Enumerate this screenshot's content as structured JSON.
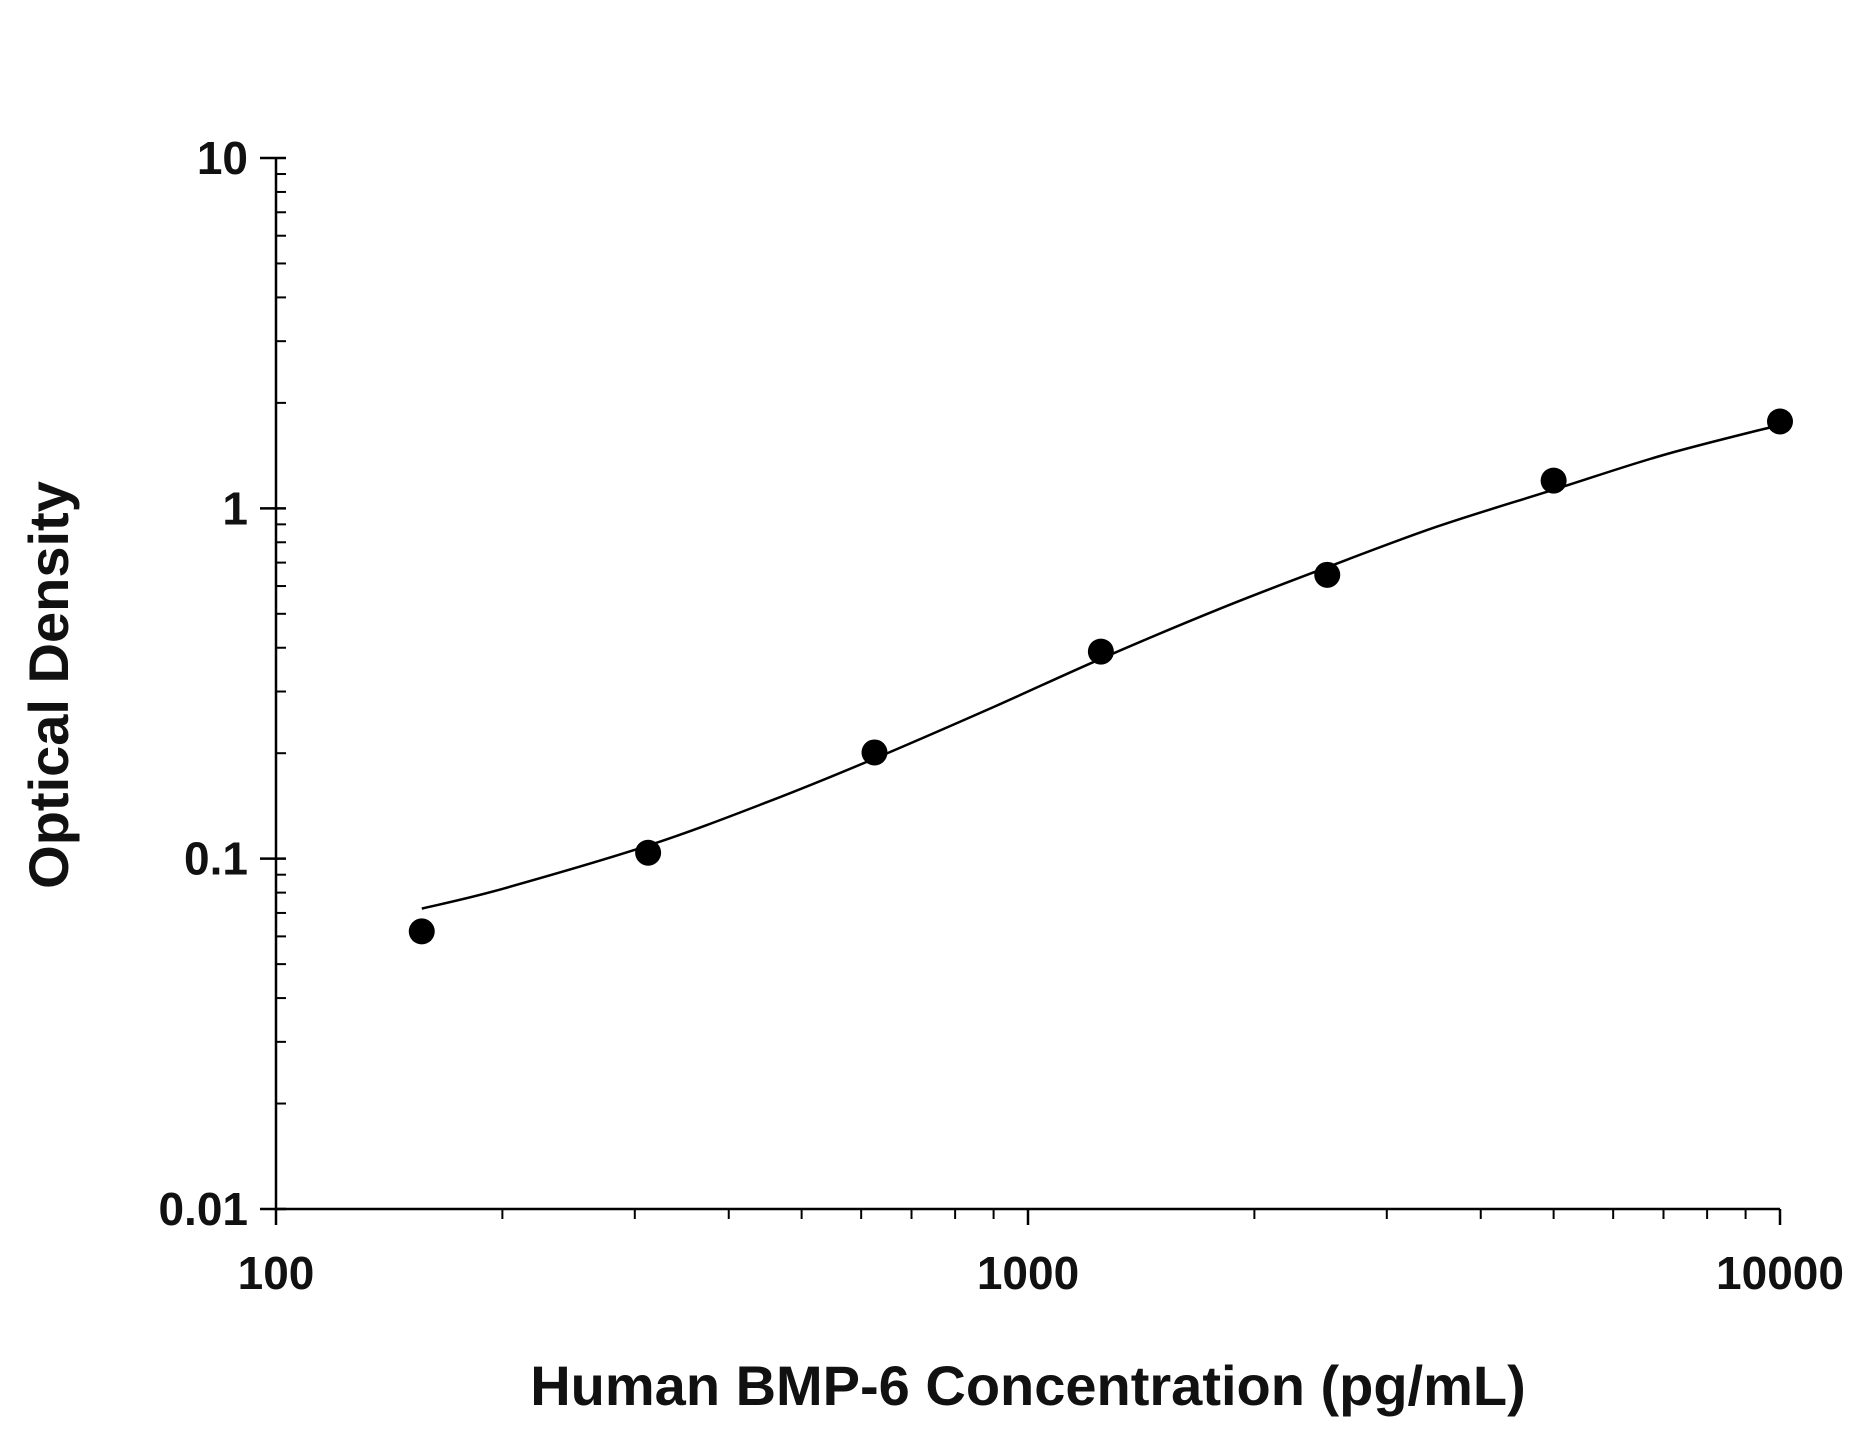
{
  "chart_data": {
    "type": "scatter",
    "title": "",
    "xlabel": "Human BMP-6 Concentration (pg/mL)",
    "ylabel": "Optical Density",
    "x_scale": "log",
    "y_scale": "log",
    "xlim": [
      100,
      10000
    ],
    "ylim": [
      0.01,
      10
    ],
    "x_tick_labels": [
      "100",
      "1000",
      "10000"
    ],
    "y_tick_labels": [
      "0.01",
      "0.1",
      "1",
      "10"
    ],
    "grid": false,
    "legend": "none",
    "series": [
      {
        "marker": "filled-circle",
        "color": "#000000",
        "x": [
          156.25,
          312.5,
          625,
          1250,
          2500,
          5000,
          10000
        ],
        "y": [
          0.062,
          0.104,
          0.201,
          0.39,
          0.646,
          1.2,
          1.77
        ]
      }
    ],
    "fit_curve": {
      "kind": "smooth fitted curve",
      "color": "#000000",
      "x": [
        156.25,
        200,
        312.5,
        450,
        625,
        900,
        1250,
        1800,
        2500,
        3500,
        5000,
        7000,
        10000
      ],
      "y": [
        0.072,
        0.082,
        0.109,
        0.145,
        0.193,
        0.271,
        0.372,
        0.517,
        0.679,
        0.887,
        1.13,
        1.42,
        1.73
      ]
    }
  }
}
